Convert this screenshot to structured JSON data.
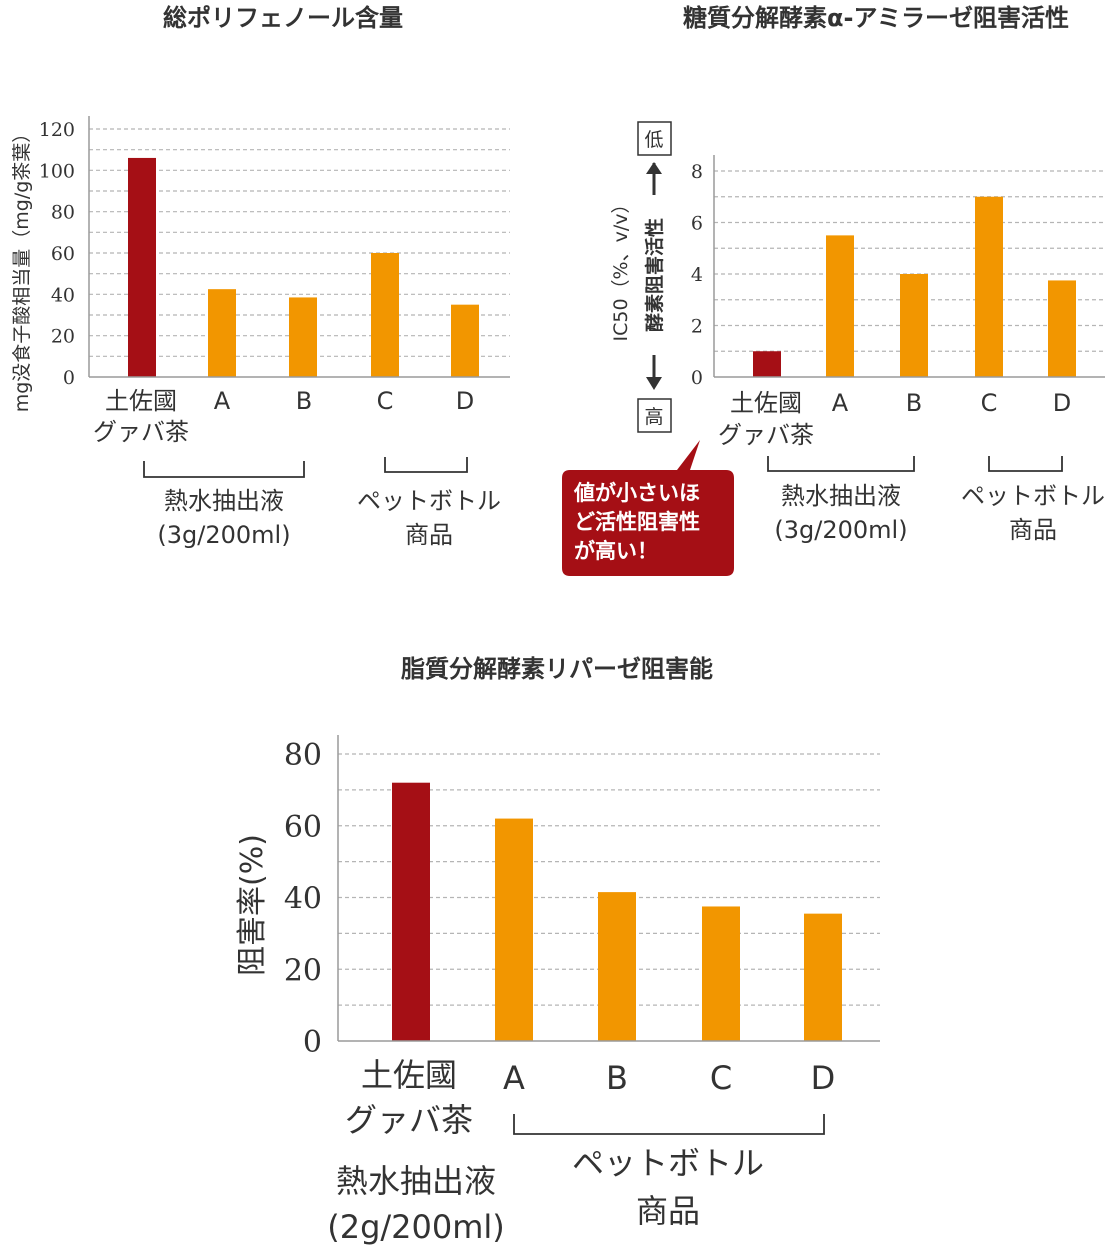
{
  "colors": {
    "highlight": "#a50f15",
    "compare": "#f29600",
    "grid": "#b5b5b5",
    "text": "#333333"
  },
  "chart_data": [
    {
      "type": "bar",
      "title": "総ポリフェノール含量",
      "ylabel": "mg没食子酸相当量（mg/g茶葉）",
      "ylim": [
        0,
        120
      ],
      "yticks": [
        "0",
        "20",
        "40",
        "60",
        "80",
        "100",
        "120"
      ],
      "categories": [
        [
          "土佐國",
          "グァバ茶"
        ],
        [
          "A"
        ],
        [
          "B"
        ],
        [
          "C"
        ],
        [
          "D"
        ]
      ],
      "values": [
        106,
        42.5,
        38.5,
        60,
        35
      ],
      "groups": [
        {
          "label": [
            "熱水抽出液",
            "(3g/200ml)"
          ]
        },
        {
          "label": [
            "ペットボトル",
            "商品"
          ]
        }
      ]
    },
    {
      "type": "bar",
      "title": "糖質分解酵素α-アミラーゼ阻害活性",
      "ylabel": "IC50（%、v/v）",
      "ylabel2": "酵素阻害活性",
      "arrow_top": "低",
      "arrow_bottom": "高",
      "ylim": [
        0,
        8
      ],
      "yticks": [
        "0",
        "2",
        "4",
        "6",
        "8"
      ],
      "categories": [
        [
          "土佐國",
          "グァバ茶"
        ],
        [
          "A"
        ],
        [
          "B"
        ],
        [
          "C"
        ],
        [
          "D"
        ]
      ],
      "values": [
        1.0,
        5.5,
        4.0,
        7.0,
        3.75
      ],
      "groups": [
        {
          "label": [
            "熱水抽出液",
            "(3g/200ml)"
          ]
        },
        {
          "label": [
            "ペットボトル",
            "商品"
          ]
        }
      ],
      "annotation": [
        "値が小さいほ",
        "ど活性阻害性",
        "が高い！"
      ]
    },
    {
      "type": "bar",
      "title": "脂質分解酵素リパーゼ阻害能",
      "ylabel": "阻害率(%)",
      "ylim": [
        0,
        80
      ],
      "yticks": [
        "0",
        "20",
        "40",
        "60",
        "80"
      ],
      "categories": [
        [
          "土佐國",
          "グァバ茶"
        ],
        [
          "A"
        ],
        [
          "B"
        ],
        [
          "C"
        ],
        [
          "D"
        ]
      ],
      "values": [
        72,
        62,
        41.5,
        37.5,
        35.5
      ],
      "groups": [
        {
          "label": [
            "熱水抽出液",
            "(2g/200ml)"
          ]
        },
        {
          "label": [
            "ペットボトル",
            "商品"
          ]
        }
      ]
    }
  ]
}
